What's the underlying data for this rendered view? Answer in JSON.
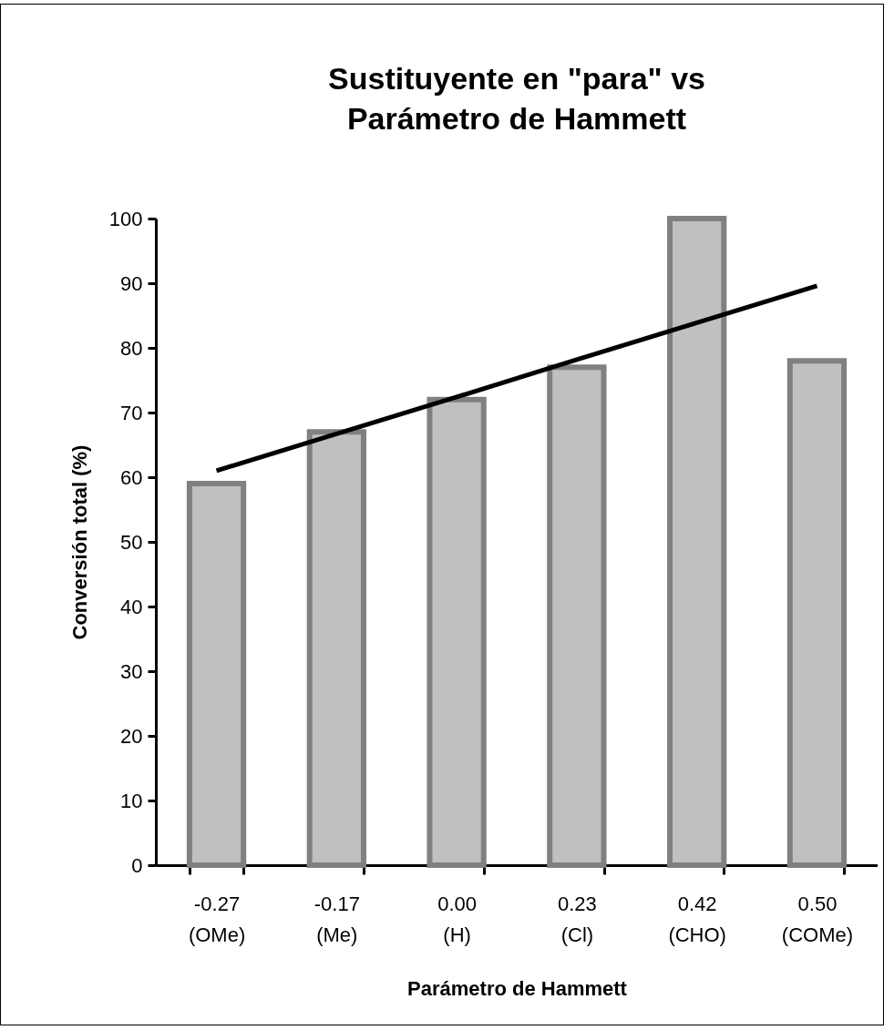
{
  "chart_data": {
    "type": "bar",
    "title": "Sustituyente en \"para\" vs Parámetro de Hammett",
    "xlabel": "Parámetro de Hammett",
    "ylabel": "Conversión total (%)",
    "categories": [
      "-0.27 (OMe)",
      "-0.17 (Me)",
      "0.00 (H)",
      "0.23 (Cl)",
      "0.42 (CHO)",
      "0.50 (COMe)"
    ],
    "series": [
      {
        "color": "#c0c0c0",
        "values": [
          59,
          67,
          72,
          77,
          100,
          78
        ]
      },
      {
        "type": "line",
        "color": "#000000",
        "values": [
          61,
          66.7,
          72.4,
          78.2,
          83.9,
          89.6
        ]
      }
    ],
    "ylim": [
      0,
      100
    ],
    "yticks": [
      0,
      10,
      20,
      30,
      40,
      50,
      60,
      70,
      80,
      90,
      100
    ],
    "grid": false,
    "marker": "none",
    "line_style": "solid"
  }
}
